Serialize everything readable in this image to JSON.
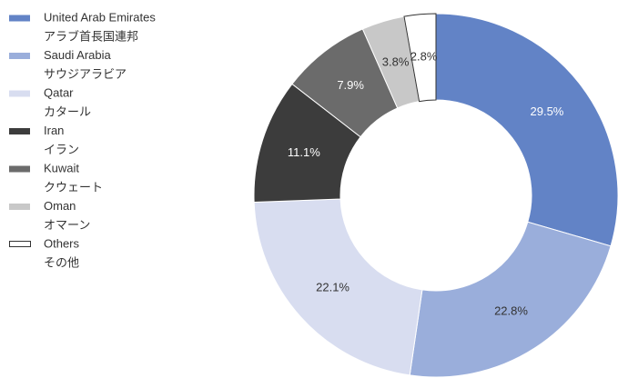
{
  "chart_data": {
    "type": "donut",
    "categories": [
      "United Arab Emirates",
      "Saudi Arabia",
      "Qatar",
      "Iran",
      "Kuwait",
      "Oman",
      "Others"
    ],
    "categories_ja": [
      "アラブ首長国連邦",
      "サウジアラビア",
      "カタール",
      "イラン",
      "クウェート",
      "オマーン",
      "その他"
    ],
    "values": [
      29.5,
      22.8,
      22.1,
      11.1,
      7.9,
      3.8,
      2.8
    ],
    "value_labels": [
      "29.5%",
      "22.8%",
      "22.1%",
      "11.1%",
      "7.9%",
      "3.8%",
      "2.8%"
    ],
    "colors": [
      "#6283c6",
      "#9aaedb",
      "#d8ddf0",
      "#3c3c3c",
      "#6b6b6b",
      "#c8c8c8",
      "#ffffff"
    ],
    "label_colors": [
      "#ffffff",
      "#333333",
      "#333333",
      "#ffffff",
      "#ffffff",
      "#333333",
      "#333333"
    ],
    "legend": "left"
  }
}
